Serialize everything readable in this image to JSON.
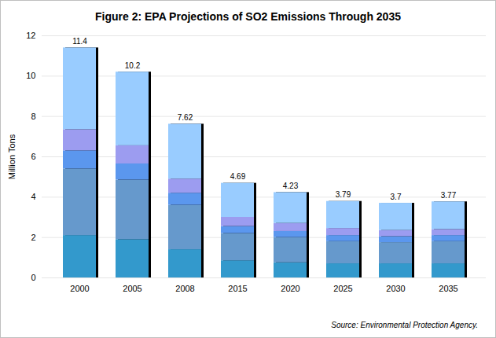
{
  "chart_data": {
    "type": "bar",
    "title": "Figure 2: EPA Projections of SO2 Emissions Through 2035",
    "ylabel": "Million Tons",
    "caption": "Source: Environmental Protection Agency.",
    "categories": [
      "2000",
      "2005",
      "2008",
      "2015",
      "2020",
      "2025",
      "2030",
      "2035"
    ],
    "series": [
      {
        "color": "#3399cc",
        "values": [
          2.1,
          1.9,
          1.4,
          0.85,
          0.75,
          0.7,
          0.7,
          0.7
        ]
      },
      {
        "color": "#6699cc",
        "values": [
          3.3,
          2.95,
          2.2,
          1.35,
          1.25,
          1.1,
          1.05,
          1.1
        ]
      },
      {
        "color": "#5b97ee",
        "values": [
          0.9,
          0.8,
          0.6,
          0.35,
          0.3,
          0.3,
          0.3,
          0.3
        ]
      },
      {
        "color": "#9c9cf0",
        "values": [
          1.05,
          0.9,
          0.7,
          0.45,
          0.4,
          0.35,
          0.3,
          0.3
        ]
      },
      {
        "color": "#99ccff",
        "values": [
          4.05,
          3.65,
          2.72,
          1.69,
          1.53,
          1.34,
          1.35,
          1.37
        ]
      }
    ],
    "totals": [
      11.4,
      10.2,
      7.62,
      4.69,
      4.23,
      3.79,
      3.7,
      3.77
    ],
    "stacked": true,
    "ylim": [
      0,
      12
    ],
    "yticks": [
      0,
      2,
      4,
      6,
      8,
      10,
      12
    ],
    "grid": true
  }
}
